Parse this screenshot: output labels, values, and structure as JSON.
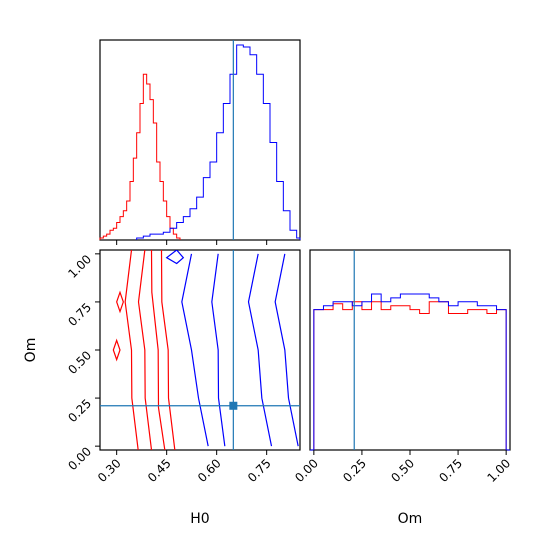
{
  "chart_data": [
    {
      "type": "histogram",
      "panel": "H0 marginal",
      "xlim": [
        0.25,
        0.85
      ],
      "reference_line": 0.65,
      "series": [
        {
          "color": "#ff0000",
          "bin_edges": [
            0.25,
            0.26,
            0.27,
            0.28,
            0.29,
            0.3,
            0.31,
            0.32,
            0.33,
            0.34,
            0.35,
            0.36,
            0.37,
            0.38,
            0.39,
            0.4,
            0.41,
            0.42,
            0.43,
            0.44,
            0.45,
            0.46,
            0.47,
            0.48,
            0.49
          ],
          "counts": [
            1,
            2,
            3,
            5,
            6,
            9,
            12,
            15,
            20,
            30,
            42,
            55,
            70,
            85,
            80,
            72,
            60,
            40,
            30,
            20,
            12,
            6,
            3,
            1
          ]
        },
        {
          "color": "#0000ff",
          "bin_edges": [
            0.36,
            0.38,
            0.4,
            0.42,
            0.44,
            0.46,
            0.48,
            0.5,
            0.52,
            0.54,
            0.56,
            0.58,
            0.6,
            0.62,
            0.64,
            0.66,
            0.68,
            0.7,
            0.72,
            0.74,
            0.76,
            0.78,
            0.8,
            0.82,
            0.84,
            0.85
          ],
          "counts": [
            1,
            2,
            3,
            3,
            4,
            6,
            9,
            12,
            16,
            22,
            32,
            40,
            55,
            70,
            85,
            100,
            99,
            95,
            85,
            70,
            50,
            30,
            15,
            5,
            1
          ]
        }
      ]
    },
    {
      "type": "contour",
      "panel": "Om vs H0",
      "xlabel": "H0",
      "ylabel": "Om",
      "xlim": [
        0.25,
        0.85
      ],
      "ylim": [
        -0.02,
        1.02
      ],
      "xticks": [
        "0.30",
        "0.45",
        "0.60",
        "0.75"
      ],
      "yticks": [
        "0.00",
        "0.25",
        "0.50",
        "0.75",
        "1.00"
      ],
      "xtick_values": [
        0.3,
        0.45,
        0.6,
        0.75
      ],
      "ytick_values": [
        0.0,
        0.25,
        0.5,
        0.75,
        1.0
      ],
      "reference_point": {
        "x": 0.65,
        "y": 0.21
      },
      "series": [
        {
          "color": "#ff0000",
          "contours": [
            [
              [
                0.34,
                1.02
              ],
              [
                0.33,
                0.75
              ],
              [
                0.34,
                0.5
              ],
              [
                0.35,
                0.25
              ],
              [
                0.36,
                -0.02
              ]
            ],
            [
              [
                0.38,
                1.02
              ],
              [
                0.37,
                0.75
              ],
              [
                0.38,
                0.5
              ],
              [
                0.39,
                0.25
              ],
              [
                0.4,
                -0.02
              ]
            ],
            [
              [
                0.43,
                1.02
              ],
              [
                0.44,
                0.75
              ],
              [
                0.45,
                0.5
              ],
              [
                0.46,
                0.25
              ],
              [
                0.47,
                -0.02
              ]
            ],
            [
              [
                0.4,
                1.02
              ],
              [
                0.41,
                0.8
              ],
              [
                0.42,
                0.5
              ],
              [
                0.43,
                0.2
              ],
              [
                0.44,
                -0.02
              ]
            ]
          ],
          "islands": [
            [
              [
                0.31,
                0.8
              ],
              [
                0.32,
                0.75
              ],
              [
                0.31,
                0.7
              ],
              [
                0.3,
                0.75
              ]
            ],
            [
              [
                0.3,
                0.55
              ],
              [
                0.31,
                0.5
              ],
              [
                0.3,
                0.45
              ],
              [
                0.29,
                0.5
              ]
            ]
          ]
        },
        {
          "color": "#0000ff",
          "contours": [
            [
              [
                0.52,
                1.0
              ],
              [
                0.5,
                0.75
              ],
              [
                0.52,
                0.5
              ],
              [
                0.55,
                0.25
              ],
              [
                0.57,
                0.0
              ]
            ],
            [
              [
                0.6,
                1.0
              ],
              [
                0.59,
                0.75
              ],
              [
                0.6,
                0.5
              ],
              [
                0.61,
                0.25
              ],
              [
                0.62,
                0.0
              ]
            ],
            [
              [
                0.72,
                1.0
              ],
              [
                0.7,
                0.75
              ],
              [
                0.72,
                0.5
              ],
              [
                0.74,
                0.25
              ],
              [
                0.76,
                0.0
              ]
            ],
            [
              [
                0.8,
                1.0
              ],
              [
                0.78,
                0.75
              ],
              [
                0.8,
                0.5
              ],
              [
                0.82,
                0.25
              ],
              [
                0.84,
                0.0
              ]
            ]
          ],
          "islands": [
            [
              [
                0.45,
                0.98
              ],
              [
                0.48,
                1.02
              ],
              [
                0.5,
                0.98
              ],
              [
                0.48,
                0.95
              ]
            ]
          ]
        }
      ]
    },
    {
      "type": "histogram",
      "panel": "Om marginal",
      "xlabel": "Om",
      "xlim": [
        -0.02,
        1.02
      ],
      "xticks": [
        "0.00",
        "0.25",
        "0.50",
        "0.75",
        "1.00"
      ],
      "xtick_values": [
        0.0,
        0.25,
        0.5,
        0.75,
        1.0
      ],
      "reference_line": 0.21,
      "series": [
        {
          "color": "#ff0000",
          "bin_edges": [
            0.0,
            0.05,
            0.1,
            0.15,
            0.2,
            0.25,
            0.3,
            0.35,
            0.4,
            0.45,
            0.5,
            0.55,
            0.6,
            0.65,
            0.7,
            0.75,
            0.8,
            0.85,
            0.9,
            0.95,
            1.0
          ],
          "counts": [
            72,
            72,
            75,
            72,
            76,
            72,
            76,
            72,
            74,
            74,
            72,
            70,
            76,
            76,
            70,
            70,
            72,
            72,
            70,
            72
          ]
        },
        {
          "color": "#0000ff",
          "bin_edges": [
            -0.02,
            0.0,
            0.05,
            0.1,
            0.15,
            0.2,
            0.25,
            0.3,
            0.35,
            0.4,
            0.45,
            0.5,
            0.55,
            0.6,
            0.65,
            0.7,
            0.75,
            0.8,
            0.85,
            0.9,
            0.95,
            1.0,
            1.02
          ],
          "counts": [
            0,
            72,
            74,
            76,
            76,
            74,
            76,
            80,
            76,
            78,
            80,
            80,
            80,
            78,
            76,
            74,
            76,
            76,
            74,
            74,
            72,
            0
          ]
        }
      ]
    }
  ]
}
